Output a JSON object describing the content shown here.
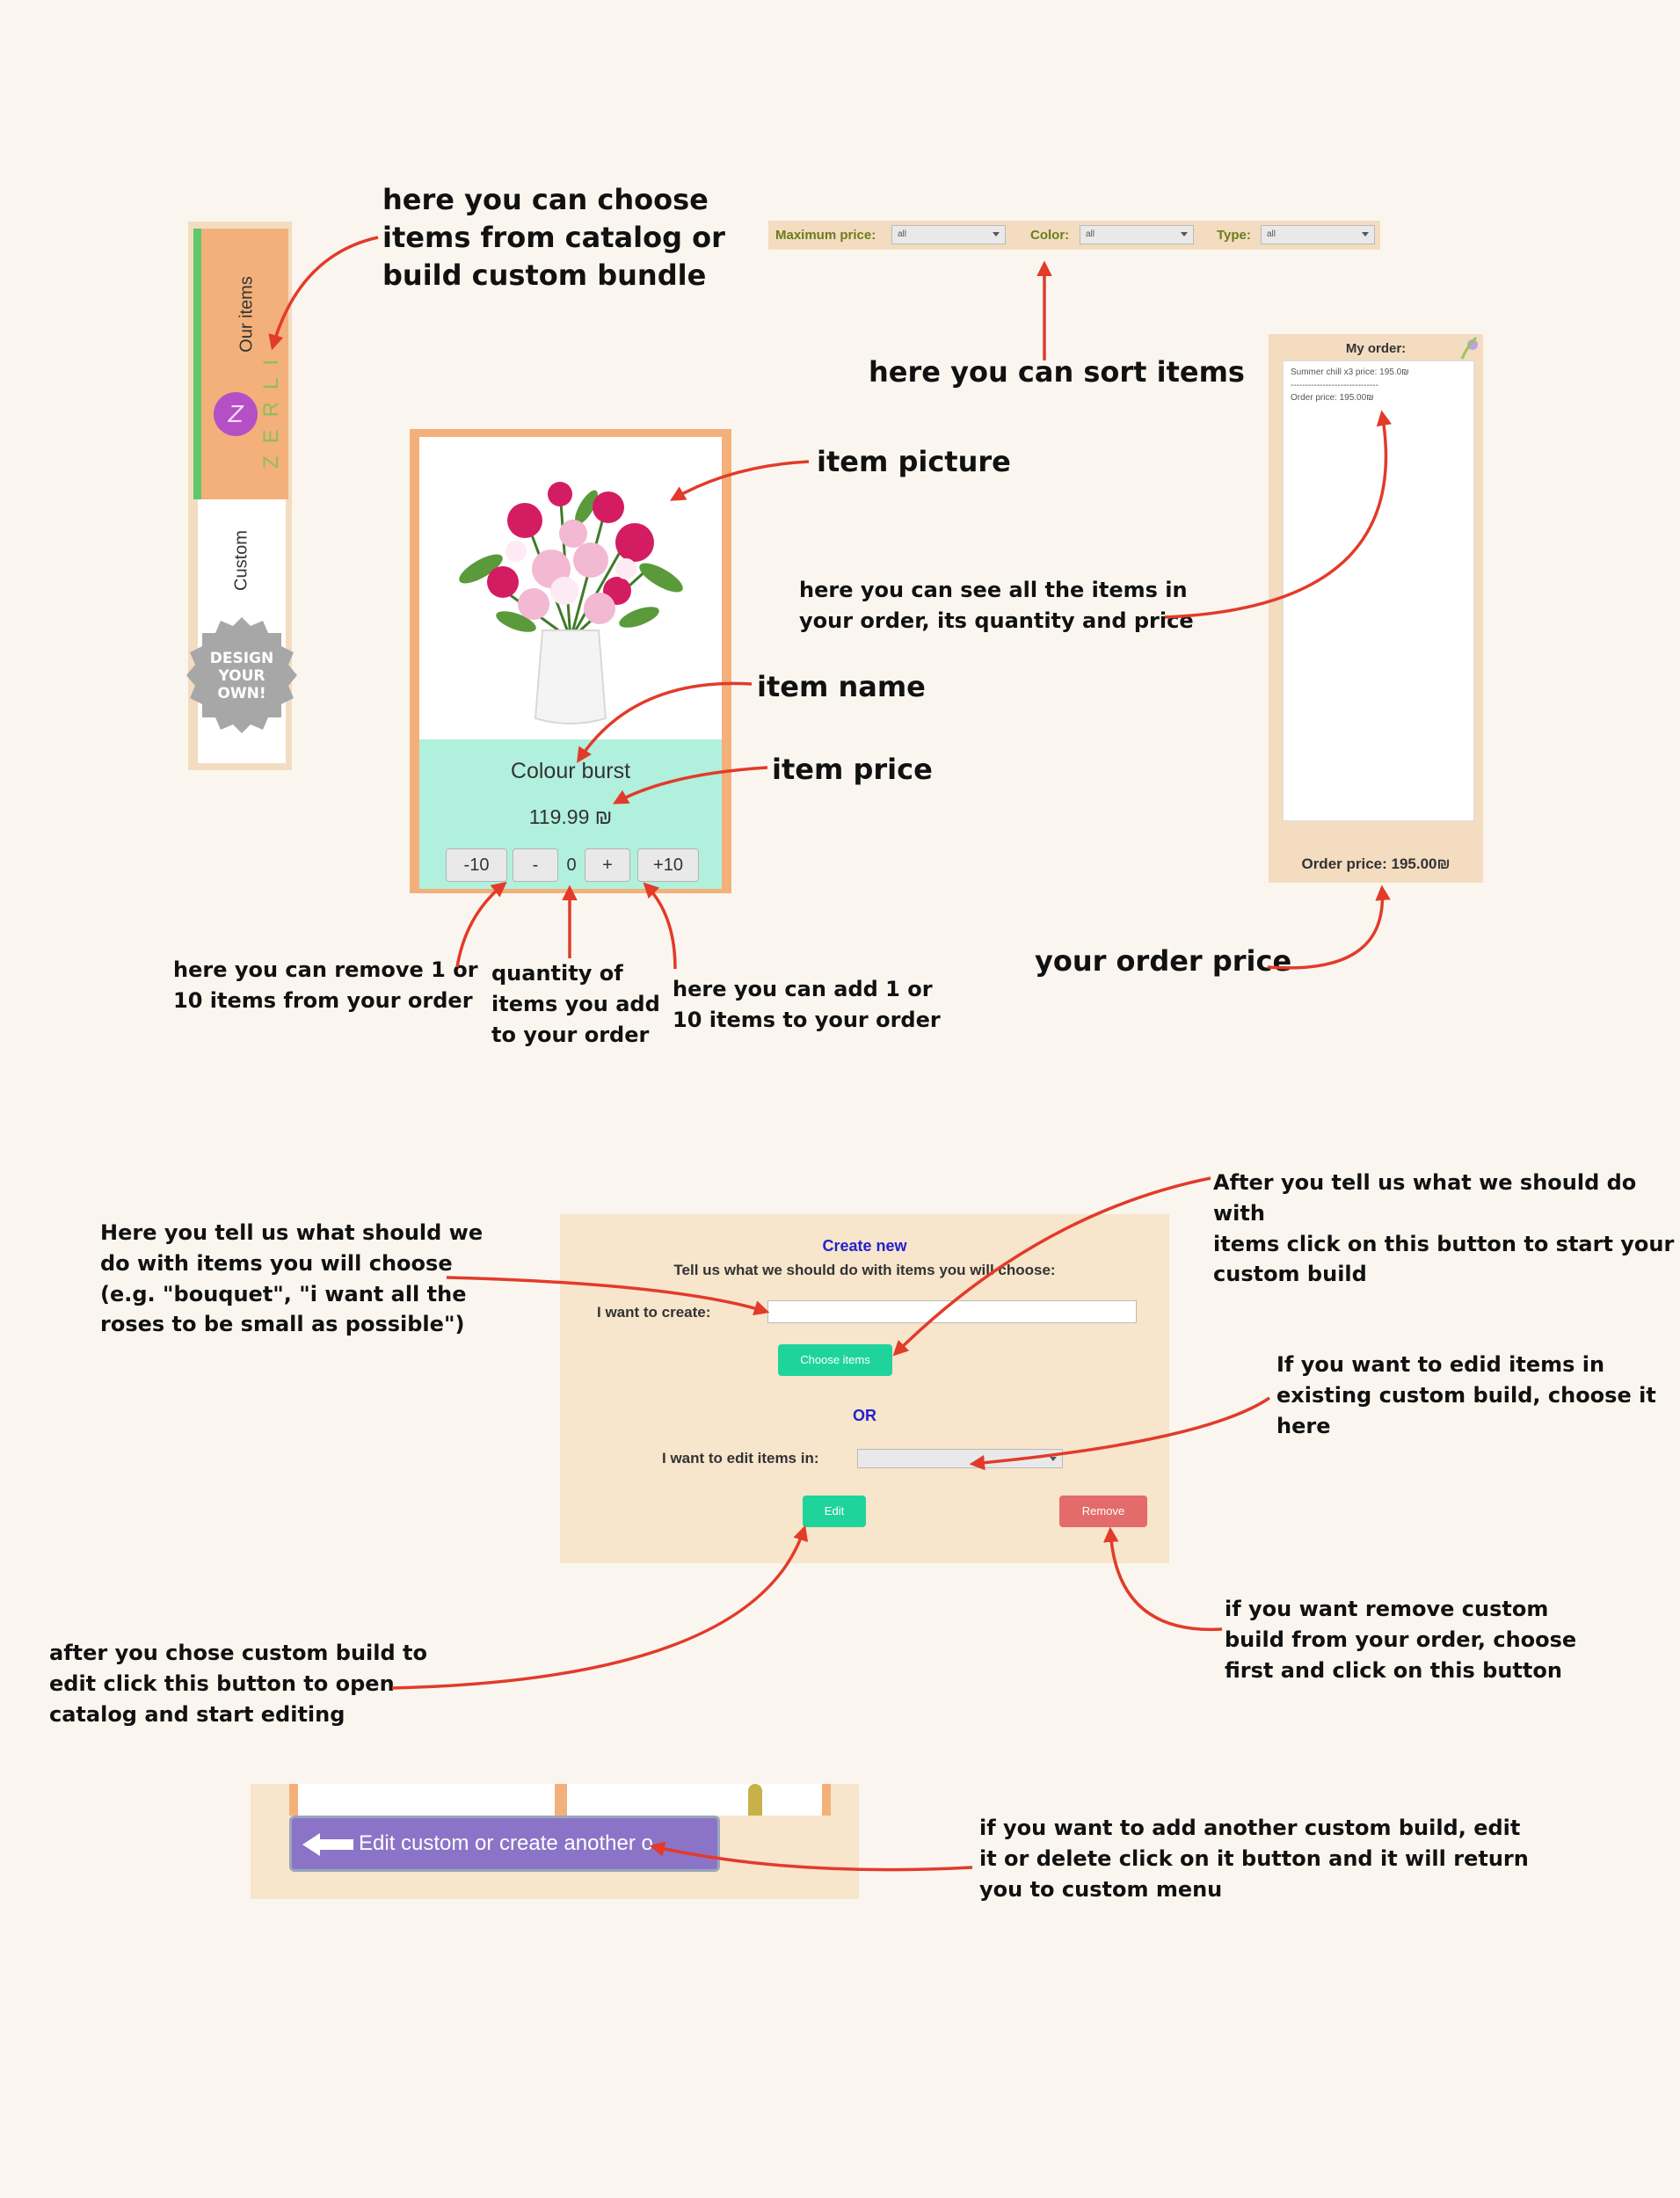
{
  "side_tabs": {
    "our_items": "Our items",
    "custom": "Custom",
    "brand": "ZERLI",
    "brand_initial": "Z",
    "design_badge": [
      "DESIGN",
      "YOUR",
      "OWN!"
    ]
  },
  "filters": {
    "max_price_label": "Maximum price:",
    "max_price_value": "all",
    "color_label": "Color:",
    "color_value": "all",
    "type_label": "Type:",
    "type_value": "all"
  },
  "product": {
    "name": "Colour burst",
    "price": "119.99 ₪",
    "buttons": {
      "minus10": "-10",
      "minus1": "-",
      "quantity": "0",
      "plus1": "+",
      "plus10": "+10"
    }
  },
  "order": {
    "title": "My order:",
    "line1": "Summer chill x3 price: 195.0₪",
    "separator": "------------------------------",
    "subtotal": "Order price: 195.00₪",
    "footer": "Order price: 195.00₪"
  },
  "create": {
    "title": "Create new",
    "subtitle": "Tell us what we should do with items you will choose:",
    "want_label": "I want to create:",
    "choose_button": "Choose items",
    "or": "OR",
    "edit_label": "I want to edit items in:",
    "edit_button": "Edit",
    "remove_button": "Remove"
  },
  "edit_bar": {
    "button_label": "Edit custom or create another o"
  },
  "notes": {
    "choose_items": "here you can choose\nitems from catalog or\nbuild custom bundle",
    "sort_items": "here you can sort items",
    "item_picture": "item picture",
    "item_name": "item name",
    "item_price": "item price",
    "order_list": "here you can see all the items in\nyour order, its quantity and price",
    "remove_items": "here you can remove 1 or\n10 items from your order",
    "quantity": "quantity of\nitems you add\nto your order",
    "add_items": "here you can add 1 or\n10 items to your order",
    "order_price": "your order price",
    "create_what": "Here you tell us what should we\ndo with items you will choose\n(e.g. \"bouquet\", \"i want all the\nroses to be small as possible\")",
    "choose_button": "After you tell us what we should do with\nitems click on this button to start your\ncustom build",
    "edit_existing": "If you want to edid items in\nexisting custom build, choose it\nhere",
    "edit_button": "after you chose custom build to\nedit click this button to open\ncatalog and start editing",
    "remove_button": "if you want remove custom\nbuild from your order, choose\nfirst and click on this button",
    "back_button": "if you want to add another custom build, edit\nit or delete click on it button and it will return\nyou to custom menu"
  },
  "colors": {
    "arrow": "#e23b2a",
    "tab_active": "#f3b07a",
    "tab_indicator": "#5ec86a",
    "info_bg": "#b1f0dd",
    "choose_button": "#1fd49a",
    "remove_button": "#e46b6b",
    "edit_bar_button": "#8b74c8",
    "title_blue": "#2222cc"
  }
}
